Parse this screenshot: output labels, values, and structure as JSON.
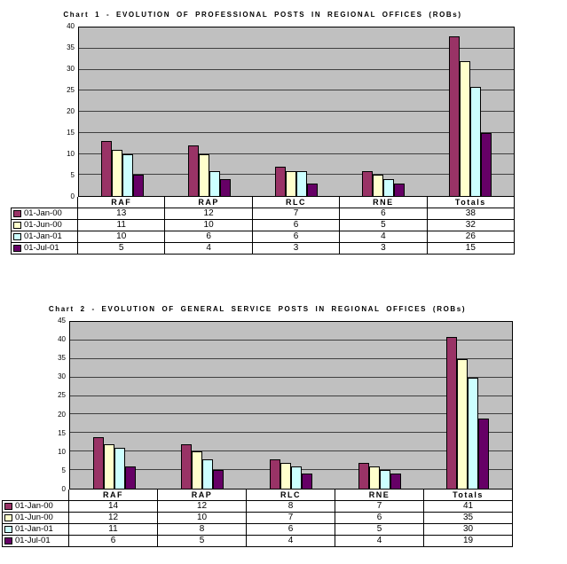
{
  "page": {
    "background": "#FFFFFF",
    "plot_area_color": "#C0C0C0"
  },
  "chart_data": [
    {
      "type": "bar",
      "title": "Chart 1 - EVOLUTION OF PROFESSIONAL POSTS IN REGIONAL OFFICES (ROBs)",
      "categories": [
        "RAF",
        "RAP",
        "RLC",
        "RNE",
        "Totals"
      ],
      "series": [
        {
          "name": "01-Jan-00",
          "color": "#993366",
          "values": [
            13,
            12,
            7,
            6,
            38
          ]
        },
        {
          "name": "01-Jun-00",
          "color": "#FFFFCC",
          "values": [
            11,
            10,
            6,
            5,
            32
          ]
        },
        {
          "name": "01-Jan-01",
          "color": "#CCFFFF",
          "values": [
            10,
            6,
            6,
            4,
            26
          ]
        },
        {
          "name": "01-Jul-01",
          "color": "#660066",
          "values": [
            5,
            4,
            3,
            3,
            15
          ]
        }
      ],
      "ylim": [
        0,
        40
      ],
      "ytick_step": 5,
      "y_tick_labels": [
        "0",
        "5",
        "10",
        "15",
        "20",
        "25",
        "30",
        "35",
        "40"
      ],
      "grid": true,
      "plot_bg": "#C0C0C0",
      "legend_position": "left-of-data-table",
      "has_data_table": true
    },
    {
      "type": "bar",
      "title": "Chart 2 - EVOLUTION OF GENERAL SERVICE POSTS IN REGIONAL OFFICES (ROBs)",
      "categories": [
        "RAF",
        "RAP",
        "RLC",
        "RNE",
        "Totals"
      ],
      "series": [
        {
          "name": "01-Jan-00",
          "color": "#993366",
          "values": [
            14,
            12,
            8,
            7,
            41
          ]
        },
        {
          "name": "01-Jun-00",
          "color": "#FFFFCC",
          "values": [
            12,
            10,
            7,
            6,
            35
          ]
        },
        {
          "name": "01-Jan-01",
          "color": "#CCFFFF",
          "values": [
            11,
            8,
            6,
            5,
            30
          ]
        },
        {
          "name": "01-Jul-01",
          "color": "#660066",
          "values": [
            6,
            5,
            4,
            4,
            19
          ]
        }
      ],
      "ylim": [
        0,
        45
      ],
      "ytick_step": 5,
      "y_tick_labels": [
        "0",
        "5",
        "10",
        "15",
        "20",
        "25",
        "30",
        "35",
        "40",
        "45"
      ],
      "grid": true,
      "plot_bg": "#C0C0C0",
      "legend_position": "left-of-data-table",
      "has_data_table": true
    }
  ]
}
